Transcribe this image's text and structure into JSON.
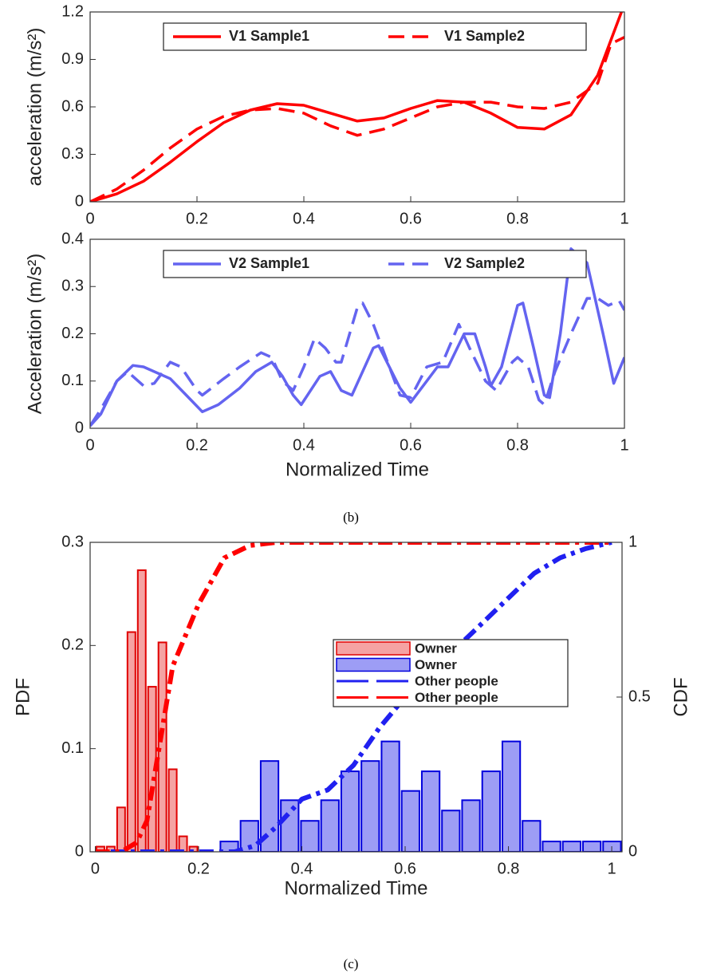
{
  "captions": [
    "(b)",
    "(c)"
  ],
  "chart_data": [
    {
      "type": "line",
      "ylabel": "acceleration (m/s²)",
      "xlim": [
        0,
        1
      ],
      "ylim": [
        0,
        1.2
      ],
      "xticks": [
        0,
        0.2,
        0.4,
        0.6,
        0.8,
        1
      ],
      "yticks": [
        0,
        0.3,
        0.6,
        0.9,
        1.2
      ],
      "legend": "top",
      "series": [
        {
          "name": "V1 Sample1",
          "color": "#ff0000",
          "style": "solid",
          "x": [
            0,
            0.05,
            0.1,
            0.15,
            0.2,
            0.25,
            0.3,
            0.35,
            0.4,
            0.45,
            0.5,
            0.55,
            0.6,
            0.65,
            0.7,
            0.75,
            0.8,
            0.85,
            0.9,
            0.95,
            1
          ],
          "values": [
            0,
            0.05,
            0.13,
            0.25,
            0.38,
            0.5,
            0.58,
            0.62,
            0.61,
            0.56,
            0.51,
            0.53,
            0.59,
            0.64,
            0.63,
            0.56,
            0.47,
            0.46,
            0.55,
            0.8,
            1.25
          ]
        },
        {
          "name": "V1 Sample2",
          "color": "#ff0000",
          "style": "dashed",
          "x": [
            0,
            0.05,
            0.1,
            0.15,
            0.2,
            0.25,
            0.3,
            0.35,
            0.4,
            0.45,
            0.5,
            0.55,
            0.6,
            0.65,
            0.7,
            0.75,
            0.8,
            0.85,
            0.9,
            0.95,
            0.975,
            1
          ],
          "values": [
            0,
            0.08,
            0.2,
            0.34,
            0.46,
            0.54,
            0.58,
            0.59,
            0.56,
            0.48,
            0.42,
            0.46,
            0.53,
            0.6,
            0.63,
            0.63,
            0.6,
            0.59,
            0.63,
            0.75,
            1,
            1.04
          ]
        }
      ]
    },
    {
      "type": "line",
      "ylabel": "Acceleration (m/s²)",
      "xlabel": "Normalized Time",
      "xlim": [
        0,
        1
      ],
      "ylim": [
        0,
        0.4
      ],
      "xticks": [
        0,
        0.2,
        0.4,
        0.6,
        0.8,
        1
      ],
      "yticks": [
        0,
        0.1,
        0.2,
        0.3,
        0.4
      ],
      "legend": "top",
      "series": [
        {
          "name": "V2 Sample1",
          "color": "#6464f0",
          "style": "solid",
          "x": [
            0,
            0.02,
            0.05,
            0.08,
            0.1,
            0.15,
            0.18,
            0.21,
            0.24,
            0.28,
            0.31,
            0.34,
            0.36,
            0.38,
            0.395,
            0.43,
            0.45,
            0.47,
            0.49,
            0.53,
            0.54,
            0.56,
            0.58,
            0.6,
            0.63,
            0.65,
            0.67,
            0.7,
            0.72,
            0.74,
            0.75,
            0.77,
            0.8,
            0.81,
            0.83,
            0.85,
            0.86,
            0.88,
            0.9,
            0.93,
            0.96,
            0.98,
            1
          ],
          "values": [
            0.005,
            0.03,
            0.1,
            0.133,
            0.13,
            0.105,
            0.07,
            0.035,
            0.05,
            0.085,
            0.12,
            0.14,
            0.11,
            0.07,
            0.05,
            0.11,
            0.12,
            0.08,
            0.07,
            0.17,
            0.175,
            0.13,
            0.085,
            0.055,
            0.1,
            0.13,
            0.13,
            0.2,
            0.2,
            0.13,
            0.09,
            0.13,
            0.26,
            0.265,
            0.17,
            0.07,
            0.065,
            0.2,
            0.38,
            0.35,
            0.2,
            0.095,
            0.15
          ]
        },
        {
          "name": "V2 Sample2",
          "color": "#6464f0",
          "style": "dashed",
          "x": [
            0,
            0.02,
            0.05,
            0.07,
            0.1,
            0.12,
            0.15,
            0.17,
            0.2,
            0.21,
            0.25,
            0.28,
            0.32,
            0.34,
            0.36,
            0.38,
            0.4,
            0.42,
            0.44,
            0.46,
            0.47,
            0.5,
            0.51,
            0.53,
            0.56,
            0.58,
            0.6,
            0.63,
            0.66,
            0.69,
            0.71,
            0.74,
            0.76,
            0.79,
            0.8,
            0.82,
            0.84,
            0.85,
            0.87,
            0.9,
            0.93,
            0.95,
            0.97,
            0.99,
            1
          ],
          "values": [
            0.005,
            0.04,
            0.1,
            0.12,
            0.09,
            0.095,
            0.14,
            0.13,
            0.08,
            0.07,
            0.105,
            0.13,
            0.16,
            0.15,
            0.1,
            0.08,
            0.13,
            0.19,
            0.17,
            0.14,
            0.14,
            0.255,
            0.265,
            0.22,
            0.13,
            0.07,
            0.065,
            0.13,
            0.14,
            0.22,
            0.17,
            0.1,
            0.08,
            0.14,
            0.15,
            0.13,
            0.06,
            0.05,
            0.12,
            0.2,
            0.275,
            0.275,
            0.26,
            0.27,
            0.25
          ]
        }
      ]
    },
    {
      "type": "histogram",
      "ylabel": "PDF",
      "y2label": "CDF",
      "xlabel": "Normalized Time",
      "xlim": [
        -0.01,
        1.02
      ],
      "ylim": [
        0,
        0.3
      ],
      "y2lim": [
        0,
        1
      ],
      "xticks": [
        0,
        0.2,
        0.4,
        0.6,
        0.8,
        1
      ],
      "yticks": [
        0,
        0.1,
        0.2,
        0.3
      ],
      "y2ticks": [
        0,
        0.5,
        1
      ],
      "legend": "center right",
      "series": [
        {
          "name": "Owner",
          "type": "histogram",
          "color": "#f5a3a3",
          "edgecolor": "#e00000",
          "bins": [
            0,
            0.02,
            0.04,
            0.06,
            0.08,
            0.1,
            0.12,
            0.14,
            0.16,
            0.18,
            0.2
          ],
          "values": [
            0.005,
            0.005,
            0.043,
            0.213,
            0.273,
            0.16,
            0.203,
            0.08,
            0.015,
            0.005
          ]
        },
        {
          "name": "Owner",
          "type": "histogram",
          "color": "#9d9df5",
          "edgecolor": "#0000dd",
          "bins": [
            0.24,
            0.279,
            0.318,
            0.357,
            0.396,
            0.435,
            0.474,
            0.513,
            0.552,
            0.591,
            0.63,
            0.669,
            0.708,
            0.747,
            0.786,
            0.825,
            0.864,
            0.903,
            0.942,
            0.981,
            1.02
          ],
          "values": [
            0.01,
            0.03,
            0.088,
            0.05,
            0.03,
            0.05,
            0.078,
            0.088,
            0.107,
            0.059,
            0.078,
            0.04,
            0.05,
            0.078,
            0.107,
            0.03,
            0.01,
            0.01,
            0.01,
            0.01
          ]
        },
        {
          "name": "Other  people",
          "type": "line",
          "axis": "y2",
          "color": "#2020f0",
          "style": "dashdot",
          "x": [
            0.03,
            0.27,
            0.31,
            0.35,
            0.4,
            0.45,
            0.5,
            0.55,
            0.6,
            0.65,
            0.7,
            0.75,
            0.8,
            0.85,
            0.9,
            0.95,
            1
          ],
          "values": [
            0,
            0,
            0.02,
            0.08,
            0.17,
            0.2,
            0.28,
            0.4,
            0.5,
            0.58,
            0.66,
            0.74,
            0.82,
            0.9,
            0.95,
            0.98,
            1
          ]
        },
        {
          "name": "Other  people",
          "type": "line",
          "axis": "y2",
          "color": "#ff0000",
          "style": "dashdot",
          "x": [
            0,
            0.05,
            0.08,
            0.1,
            0.12,
            0.15,
            0.2,
            0.25,
            0.3,
            0.35,
            0.5,
            1
          ],
          "values": [
            0,
            0,
            0.03,
            0.1,
            0.3,
            0.6,
            0.8,
            0.95,
            0.99,
            1,
            1,
            1
          ]
        }
      ]
    }
  ]
}
